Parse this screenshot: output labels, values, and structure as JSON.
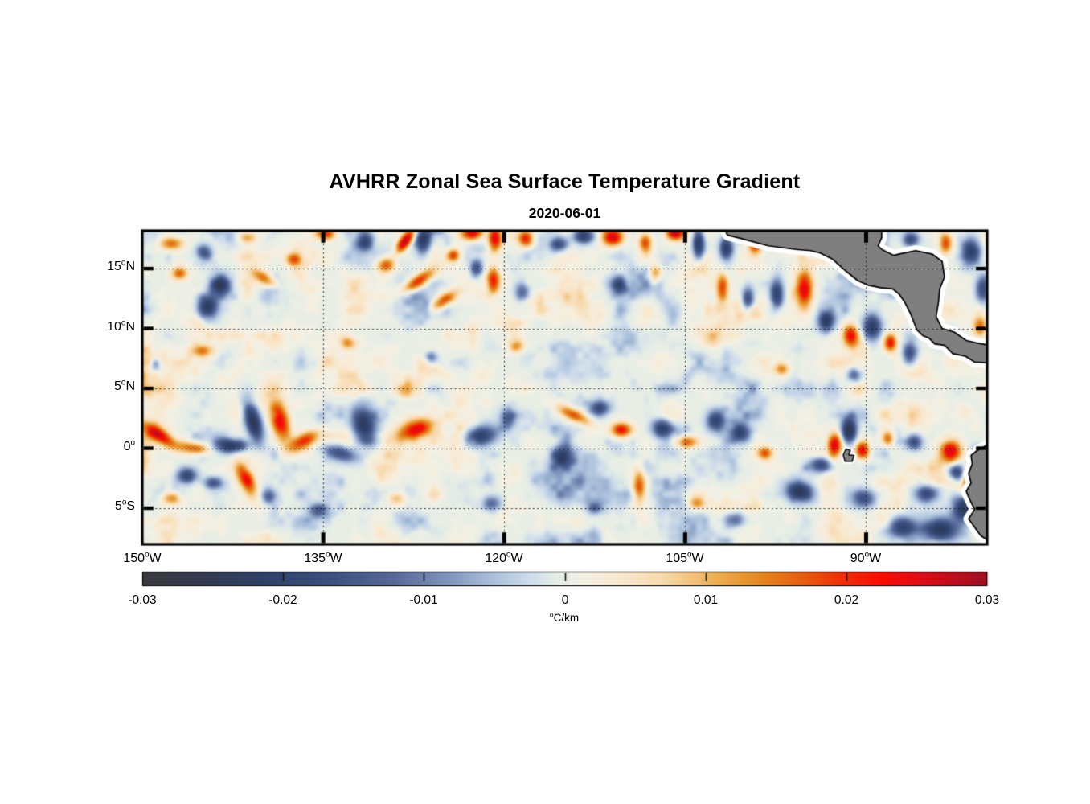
{
  "title": "AVHRR Zonal Sea Surface Temperature Gradient",
  "subtitle": "2020-06-01",
  "chart_data": {
    "type": "heatmap",
    "variable": "zonal sea surface temperature gradient",
    "title": "AVHRR Zonal Sea Surface Temperature Gradient",
    "date": "2020-06-01",
    "x_axis": {
      "tick_lons": [
        -150,
        -135,
        -120,
        -105,
        -90
      ],
      "ticks": [
        {
          "num": "150",
          "sup": "o",
          "suf": "W"
        },
        {
          "num": "135",
          "sup": "o",
          "suf": "W"
        },
        {
          "num": "120",
          "sup": "o",
          "suf": "W"
        },
        {
          "num": "105",
          "sup": "o",
          "suf": "W"
        },
        {
          "num": "90",
          "sup": "o",
          "suf": "W"
        }
      ],
      "range_deg": [
        -150,
        -79.97
      ]
    },
    "y_axis": {
      "tick_lats": [
        15,
        10,
        5,
        0,
        -5
      ],
      "ticks": [
        {
          "num": "15",
          "sup": "o",
          "suf": "N"
        },
        {
          "num": "10",
          "sup": "o",
          "suf": "N"
        },
        {
          "num": "5",
          "sup": "o",
          "suf": "N"
        },
        {
          "num": "0",
          "sup": "o",
          "suf": ""
        },
        {
          "num": "5",
          "sup": "o",
          "suf": "S"
        }
      ],
      "range_deg": [
        -8.02,
        18.16
      ]
    },
    "colorbar": {
      "vmin": -0.03,
      "vmax": 0.03,
      "tick_values": [
        -0.03,
        -0.02,
        -0.01,
        0,
        0.01,
        0.02,
        0.03
      ],
      "tick_labels": [
        "-0.03",
        "-0.02",
        "-0.01",
        "0",
        "0.01",
        "0.02",
        "0.03"
      ],
      "unit_sup": "o",
      "unit_text": "C/km"
    },
    "colormap": [
      [
        0.0,
        "#3a3a3e"
      ],
      [
        0.07,
        "#33394f"
      ],
      [
        0.14,
        "#2e4068"
      ],
      [
        0.22,
        "#3a4f7e"
      ],
      [
        0.3,
        "#57699a"
      ],
      [
        0.36,
        "#7e93bc"
      ],
      [
        0.42,
        "#aec4dd"
      ],
      [
        0.46,
        "#cfdcea"
      ],
      [
        0.49,
        "#e4ede5"
      ],
      [
        0.52,
        "#f3f0e4"
      ],
      [
        0.56,
        "#f8ead2"
      ],
      [
        0.62,
        "#f7d7a8"
      ],
      [
        0.68,
        "#eeae52"
      ],
      [
        0.73,
        "#e4881f"
      ],
      [
        0.78,
        "#e55f0e"
      ],
      [
        0.83,
        "#f02d05"
      ],
      [
        0.875,
        "#fb0a03"
      ],
      [
        0.92,
        "#e00d15"
      ],
      [
        1.0,
        "#9e0e23"
      ]
    ],
    "colors": {
      "land": "#7f7f7f",
      "coast": "#000000",
      "halo": "#ffffff",
      "background": "#ffffff",
      "grid": "#111111"
    },
    "noise": {
      "seed": 20200601,
      "octave_scales_deg": [
        6,
        2.2,
        1.1,
        0.55
      ],
      "octave_weights": [
        0.5,
        1,
        0.5,
        0.28
      ],
      "sharpen": 1.5,
      "amplitude": 0.016
    },
    "features": [
      [
        -147.6,
        17.1,
        0.018,
        0.9,
        0.5,
        0
      ],
      [
        -144.9,
        16.4,
        -0.014,
        0.6,
        0.6,
        0
      ],
      [
        -141.3,
        17.6,
        0.014,
        0.7,
        0.5,
        0
      ],
      [
        -134.8,
        17.9,
        0.02,
        0.8,
        0.5,
        0
      ],
      [
        -131.5,
        17.3,
        -0.018,
        0.6,
        0.8,
        0
      ],
      [
        -128.2,
        17.3,
        0.03,
        1.1,
        0.45,
        55
      ],
      [
        -126.7,
        17.4,
        -0.022,
        0.6,
        1.0,
        0
      ],
      [
        -124.2,
        16.1,
        0.02,
        0.5,
        0.5,
        0
      ],
      [
        -122.6,
        18.0,
        0.026,
        0.9,
        0.6,
        0
      ],
      [
        -120.8,
        17.5,
        0.028,
        0.55,
        1.0,
        0
      ],
      [
        -118.2,
        17.5,
        0.022,
        0.6,
        0.7,
        0
      ],
      [
        -115.5,
        17.0,
        -0.018,
        0.7,
        0.6,
        0
      ],
      [
        -113.4,
        17.7,
        -0.02,
        0.8,
        0.6,
        0
      ],
      [
        -111.0,
        17.6,
        0.026,
        0.8,
        0.7,
        0
      ],
      [
        -108.3,
        17.2,
        0.018,
        0.5,
        0.8,
        0
      ],
      [
        -105.8,
        18.0,
        0.024,
        0.7,
        0.6,
        0
      ],
      [
        -103.9,
        17.1,
        -0.026,
        0.5,
        1.1,
        0
      ],
      [
        -101.6,
        16.7,
        -0.022,
        0.5,
        0.9,
        0
      ],
      [
        -99.2,
        17.3,
        0.026,
        0.5,
        0.9,
        0
      ],
      [
        -96.7,
        17.5,
        0.028,
        0.5,
        0.8,
        0
      ],
      [
        -94.5,
        16.9,
        -0.022,
        0.5,
        0.7,
        0
      ],
      [
        -92.0,
        16.9,
        -0.026,
        0.7,
        1.1,
        0
      ],
      [
        -90.4,
        17.7,
        -0.022,
        0.8,
        0.7,
        0
      ],
      [
        -89.0,
        16.2,
        0.02,
        0.4,
        0.6,
        0
      ],
      [
        -86.3,
        17.4,
        -0.018,
        0.6,
        0.6,
        0
      ],
      [
        -83.4,
        17.1,
        0.018,
        0.5,
        0.8,
        0
      ],
      [
        -81.3,
        16.4,
        -0.02,
        0.7,
        1.0,
        0
      ],
      [
        -143.6,
        13.6,
        -0.022,
        0.8,
        0.7,
        0
      ],
      [
        -144.6,
        11.9,
        -0.024,
        0.8,
        1.0,
        0
      ],
      [
        -146.9,
        14.6,
        0.016,
        0.6,
        0.5,
        0
      ],
      [
        -139.9,
        14.2,
        0.016,
        1.2,
        0.5,
        -30
      ],
      [
        -137.4,
        15.8,
        0.018,
        0.6,
        0.5,
        0
      ],
      [
        -127.2,
        13.9,
        0.022,
        1.6,
        0.5,
        35
      ],
      [
        -125.0,
        12.3,
        0.02,
        1.1,
        0.5,
        35
      ],
      [
        -129.8,
        15.3,
        0.018,
        0.7,
        0.6,
        0
      ],
      [
        -122.3,
        15.0,
        -0.016,
        0.5,
        0.7,
        0
      ],
      [
        -120.9,
        14.0,
        0.021,
        0.5,
        1.0,
        0
      ],
      [
        -118.5,
        13.0,
        -0.014,
        0.6,
        0.8,
        0
      ],
      [
        -110.5,
        13.5,
        -0.016,
        0.6,
        0.7,
        0
      ],
      [
        -107.5,
        14.5,
        0.016,
        0.5,
        0.7,
        0
      ],
      [
        -101.9,
        13.4,
        0.02,
        0.5,
        1.2,
        0
      ],
      [
        -99.8,
        12.4,
        -0.018,
        0.5,
        1.0,
        0
      ],
      [
        -97.4,
        12.8,
        -0.02,
        0.5,
        1.2,
        0
      ],
      [
        -95.1,
        13.2,
        0.024,
        0.6,
        1.4,
        0
      ],
      [
        -93.3,
        10.6,
        -0.02,
        0.6,
        0.9,
        0
      ],
      [
        -91.3,
        9.4,
        0.021,
        0.6,
        0.9,
        0
      ],
      [
        -89.5,
        10.1,
        -0.022,
        0.7,
        1.0,
        0
      ],
      [
        -88.0,
        8.8,
        0.022,
        0.5,
        0.7,
        0
      ],
      [
        -86.4,
        7.9,
        -0.02,
        0.6,
        0.8,
        0
      ],
      [
        -80.6,
        10.1,
        0.02,
        0.5,
        0.9,
        0
      ],
      [
        -80.4,
        13.3,
        -0.016,
        0.5,
        1.0,
        0
      ],
      [
        -148.9,
        7.0,
        -0.014,
        0.5,
        0.6,
        0
      ],
      [
        -145.0,
        8.1,
        0.012,
        0.8,
        0.5,
        0
      ],
      [
        -133.0,
        8.8,
        0.013,
        0.6,
        0.5,
        0
      ],
      [
        -126.0,
        7.6,
        -0.012,
        0.5,
        0.5,
        0
      ],
      [
        -119.0,
        8.5,
        0.012,
        0.6,
        0.5,
        0
      ],
      [
        -97.0,
        6.6,
        0.014,
        0.6,
        0.5,
        0
      ],
      [
        -91.0,
        6.1,
        -0.014,
        0.6,
        0.6,
        0
      ],
      [
        -148.6,
        1.1,
        0.024,
        1.6,
        0.55,
        -35
      ],
      [
        -145.6,
        0.0,
        0.018,
        1.3,
        0.5,
        -10
      ],
      [
        -140.8,
        2.2,
        -0.026,
        0.6,
        1.6,
        15
      ],
      [
        -142.4,
        0.2,
        -0.02,
        1.2,
        0.5,
        5
      ],
      [
        -138.6,
        2.3,
        0.026,
        0.7,
        1.7,
        15
      ],
      [
        -136.6,
        0.6,
        0.02,
        1.3,
        0.6,
        30
      ],
      [
        -141.4,
        -2.6,
        0.02,
        0.6,
        1.5,
        25
      ],
      [
        -131.6,
        1.7,
        -0.025,
        0.9,
        1.6,
        10
      ],
      [
        -133.6,
        -0.4,
        -0.018,
        1.3,
        0.6,
        -15
      ],
      [
        -127.4,
        1.6,
        0.022,
        1.4,
        0.8,
        20
      ],
      [
        -122.0,
        1.0,
        -0.021,
        1.4,
        0.8,
        15
      ],
      [
        -119.7,
        2.5,
        -0.014,
        0.6,
        0.8,
        0
      ],
      [
        -114.3,
        2.8,
        0.018,
        1.5,
        0.5,
        -25
      ],
      [
        -110.3,
        1.5,
        0.024,
        0.8,
        0.6,
        0
      ],
      [
        -112.1,
        3.3,
        -0.016,
        0.8,
        0.6,
        0
      ],
      [
        -115.2,
        -0.7,
        -0.018,
        0.7,
        0.8,
        0
      ],
      [
        -108.8,
        -3.2,
        0.018,
        0.5,
        1.3,
        0
      ],
      [
        -106.9,
        1.7,
        -0.018,
        0.8,
        0.7,
        0
      ],
      [
        -104.9,
        0.5,
        0.018,
        0.9,
        0.5,
        0
      ],
      [
        -102.5,
        2.3,
        -0.018,
        0.7,
        0.8,
        0
      ],
      [
        -100.4,
        1.2,
        -0.018,
        0.9,
        0.7,
        0
      ],
      [
        -98.4,
        -0.4,
        0.016,
        0.7,
        0.5,
        0
      ],
      [
        -95.5,
        -3.6,
        -0.02,
        1.1,
        0.8,
        -20
      ],
      [
        -92.6,
        0.3,
        0.027,
        0.55,
        0.9,
        0
      ],
      [
        -91.4,
        1.5,
        -0.027,
        0.6,
        1.0,
        0
      ],
      [
        -90.3,
        -0.2,
        0.024,
        0.55,
        0.7,
        0
      ],
      [
        -93.7,
        -1.4,
        -0.018,
        0.9,
        0.6,
        0
      ],
      [
        -88.2,
        0.8,
        0.018,
        0.5,
        0.6,
        0
      ],
      [
        -86.0,
        0.5,
        -0.016,
        0.6,
        0.6,
        0
      ],
      [
        -83.0,
        -0.2,
        0.026,
        0.8,
        0.9,
        0
      ],
      [
        -81.4,
        -2.9,
        0.03,
        0.45,
        1.0,
        0
      ],
      [
        -80.9,
        -0.9,
        -0.024,
        0.5,
        0.8,
        0
      ],
      [
        -146.3,
        -2.3,
        -0.018,
        0.8,
        0.6,
        0
      ],
      [
        -144.1,
        -2.9,
        -0.016,
        0.7,
        0.5,
        0
      ],
      [
        -147.6,
        -4.2,
        0.015,
        0.8,
        0.5,
        0
      ],
      [
        -139.5,
        -4.0,
        -0.013,
        0.6,
        0.6,
        0
      ],
      [
        -135.4,
        -5.2,
        -0.015,
        0.8,
        0.6,
        0
      ],
      [
        -129.0,
        -4.2,
        0.012,
        0.7,
        0.5,
        0
      ],
      [
        -121.0,
        -4.6,
        -0.012,
        0.7,
        0.6,
        0
      ],
      [
        -112.5,
        -5.0,
        -0.012,
        0.6,
        0.5,
        0
      ],
      [
        -104.0,
        -4.6,
        0.013,
        0.7,
        0.5,
        0
      ],
      [
        -101.0,
        -6.0,
        -0.014,
        0.8,
        0.6,
        0
      ],
      [
        -90.2,
        -4.2,
        -0.016,
        0.9,
        0.7,
        0
      ],
      [
        -87.0,
        -6.6,
        -0.02,
        1.2,
        0.8,
        0
      ],
      [
        -85.0,
        -3.8,
        -0.018,
        0.9,
        0.7,
        0
      ],
      [
        -83.8,
        -6.8,
        -0.024,
        1.3,
        0.9,
        0
      ],
      [
        -81.9,
        -4.9,
        -0.026,
        0.9,
        1.1,
        0
      ],
      [
        -82.5,
        -2.0,
        -0.02,
        0.7,
        0.7,
        0
      ]
    ],
    "land": {
      "central_america": [
        [
          -102.2,
          19.5
        ],
        [
          -101.5,
          17.8
        ],
        [
          -100.5,
          17.55
        ],
        [
          -98.1,
          16.9
        ],
        [
          -95.8,
          16.6
        ],
        [
          -94.6,
          16.5
        ],
        [
          -93.8,
          16.3
        ],
        [
          -92.8,
          15.8
        ],
        [
          -91.8,
          14.9
        ],
        [
          -90.7,
          14.0
        ],
        [
          -89.8,
          13.6
        ],
        [
          -88.8,
          13.4
        ],
        [
          -87.8,
          13.3
        ],
        [
          -87.3,
          12.9
        ],
        [
          -86.8,
          12.2
        ],
        [
          -86.3,
          11.2
        ],
        [
          -85.8,
          9.9
        ],
        [
          -85.3,
          9.4
        ],
        [
          -84.8,
          9.2
        ],
        [
          -84.3,
          8.7
        ],
        [
          -83.5,
          8.6
        ],
        [
          -82.8,
          7.9
        ],
        [
          -81.8,
          7.7
        ],
        [
          -81.0,
          7.2
        ],
        [
          -79.2,
          7.1
        ],
        [
          -79.2,
          8.5
        ],
        [
          -80.9,
          8.8
        ],
        [
          -81.7,
          9.0
        ],
        [
          -82.7,
          9.7
        ],
        [
          -83.7,
          10.0
        ],
        [
          -84.2,
          11.0
        ],
        [
          -84.0,
          12.2
        ],
        [
          -83.9,
          13.3
        ],
        [
          -83.5,
          14.3
        ],
        [
          -83.7,
          15.6
        ],
        [
          -84.5,
          16.2
        ],
        [
          -85.9,
          16.5
        ],
        [
          -87.3,
          16.2
        ],
        [
          -87.7,
          16.1
        ],
        [
          -88.7,
          16.6
        ],
        [
          -89.0,
          16.9
        ],
        [
          -88.7,
          17.6
        ],
        [
          -88.8,
          19.5
        ]
      ],
      "south_america": [
        [
          -79.4,
          0.6
        ],
        [
          -80.8,
          -0.2
        ],
        [
          -81.3,
          -0.6
        ],
        [
          -81.2,
          -1.3
        ],
        [
          -81.5,
          -2.1
        ],
        [
          -81.3,
          -2.9
        ],
        [
          -81.7,
          -3.6
        ],
        [
          -81.4,
          -4.3
        ],
        [
          -81.0,
          -5.1
        ],
        [
          -81.5,
          -5.9
        ],
        [
          -81.0,
          -6.6
        ],
        [
          -80.5,
          -7.3
        ],
        [
          -79.9,
          -7.7
        ],
        [
          -79.4,
          -8.6
        ]
      ],
      "galapagos": [
        [
          -91.9,
          -0.55
        ],
        [
          -91.65,
          -0.05
        ],
        [
          -91.3,
          -0.2
        ],
        [
          -91.45,
          -0.55
        ],
        [
          -91.0,
          -0.6
        ],
        [
          -91.15,
          -1.1
        ],
        [
          -91.75,
          -1.1
        ]
      ]
    }
  }
}
